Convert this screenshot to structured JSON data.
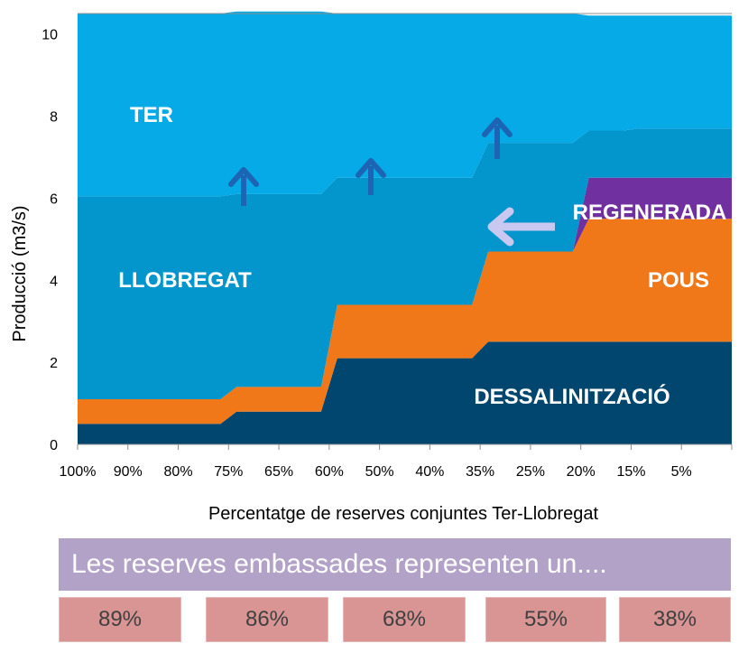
{
  "chart_data": {
    "type": "area",
    "stacked": true,
    "ylabel": "Producció (m3/s)",
    "xlabel": "Percentatge de reserves  conjuntes Ter-Llobregat",
    "ylim": [
      0,
      10.5
    ],
    "yticks": [
      0,
      2,
      4,
      6,
      8,
      10
    ],
    "x_tick_labels": [
      "100%",
      "90%",
      "80%",
      "75%",
      "65%",
      "60%",
      "50%",
      "40%",
      "35%",
      "25%",
      "20%",
      "15%",
      "5%"
    ],
    "grid": false,
    "legend": "none (labels drawn on areas)",
    "series": [
      {
        "name": "DESSALINITZACIÓ",
        "color": "#00466e",
        "values": [
          0.5,
          0.5,
          0.5,
          0.8,
          0.8,
          2.1,
          2.1,
          2.1,
          2.5,
          2.5,
          2.5,
          2.5,
          2.5
        ]
      },
      {
        "name": "POUS",
        "color": "#f07818",
        "values": [
          0.6,
          0.6,
          0.6,
          0.6,
          0.6,
          1.3,
          1.3,
          1.3,
          2.2,
          2.2,
          3.0,
          3.0,
          3.0
        ]
      },
      {
        "name": "REGENERADA",
        "color": "#7030a0",
        "values": [
          0,
          0,
          0,
          0,
          0,
          0,
          0,
          0,
          0,
          0,
          1.0,
          1.0,
          1.0
        ]
      },
      {
        "name": "LLOBREGAT",
        "color": "#0396cc",
        "values": [
          4.95,
          4.95,
          4.95,
          4.7,
          4.7,
          3.1,
          3.1,
          3.1,
          2.65,
          2.65,
          1.15,
          1.2,
          1.2
        ]
      },
      {
        "name": "TER",
        "color": "#05aae6",
        "values": [
          4.45,
          4.45,
          4.45,
          4.45,
          4.45,
          4.0,
          4.0,
          4.0,
          3.15,
          3.15,
          2.8,
          2.75,
          2.75
        ]
      }
    ],
    "annotations": [
      {
        "type": "arrow-up",
        "color": "#1e64b4",
        "near_x": "75%"
      },
      {
        "type": "arrow-up",
        "color": "#1e64b4",
        "near_x": "50%"
      },
      {
        "type": "arrow-up",
        "color": "#1e64b4",
        "near_x": "35%"
      },
      {
        "type": "arrow-left",
        "color": "#c8c8f0",
        "near_x": "25%"
      }
    ]
  },
  "banner": {
    "text": "Les reserves embassades representen un...."
  },
  "reserve_boxes": [
    "89%",
    "86%",
    "68%",
    "55%",
    "38%"
  ]
}
